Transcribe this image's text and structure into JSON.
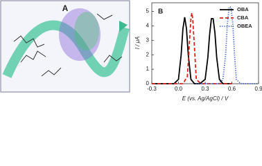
{
  "panel_a": {
    "label": "A"
  },
  "chart_data": {
    "type": "line",
    "panel_label": "B",
    "x_label": "E (vs. Ag/AgCl) / V",
    "y_label": "I / μA",
    "xlim": [
      -0.3,
      0.9
    ],
    "ylim": [
      0,
      5.6
    ],
    "xticks": [
      {
        "value": -0.3,
        "label": "-0.3"
      },
      {
        "value": 0,
        "label": "0.0"
      },
      {
        "value": 0.3,
        "label": "0.3"
      },
      {
        "value": 0.6,
        "label": "0.6"
      },
      {
        "value": 0.9,
        "label": "0.9"
      }
    ],
    "yticks": [
      0,
      1,
      2,
      3,
      4,
      5
    ],
    "legend": "upper right",
    "series": [
      {
        "name": "OBA",
        "color": "#000000",
        "dash": "solid",
        "x": [
          -0.3,
          -0.05,
          0.0,
          0.03,
          0.05,
          0.07,
          0.09,
          0.11,
          0.14,
          0.18,
          0.24,
          0.3,
          0.33,
          0.35,
          0.37,
          0.39,
          0.41,
          0.43,
          0.46,
          0.5,
          0.6
        ],
        "values": [
          0,
          0,
          0.3,
          2.0,
          3.8,
          4.6,
          3.8,
          2.0,
          0.3,
          0,
          0,
          0.3,
          1.8,
          3.4,
          4.5,
          4.5,
          3.5,
          1.8,
          0.3,
          0,
          0
        ]
      },
      {
        "name": "CBA",
        "color": "#e0201b",
        "dash": "dashed",
        "x": [
          -0.3,
          0.05,
          0.1,
          0.12,
          0.14,
          0.15,
          0.16,
          0.18,
          0.2,
          0.25,
          0.6
        ],
        "values": [
          0,
          0,
          0.5,
          2.5,
          4.5,
          4.9,
          4.5,
          2.5,
          0.3,
          0,
          0
        ]
      },
      {
        "name": "OBEA",
        "color": "#3a5fcd",
        "dash": "dotted",
        "x": [
          0.2,
          0.45,
          0.5,
          0.53,
          0.55,
          0.57,
          0.59,
          0.61,
          0.63,
          0.65,
          0.7,
          0.9
        ],
        "values": [
          0,
          0,
          0.3,
          2.0,
          4.2,
          5.3,
          5.3,
          4.2,
          2.0,
          0.3,
          0,
          0
        ]
      }
    ]
  }
}
